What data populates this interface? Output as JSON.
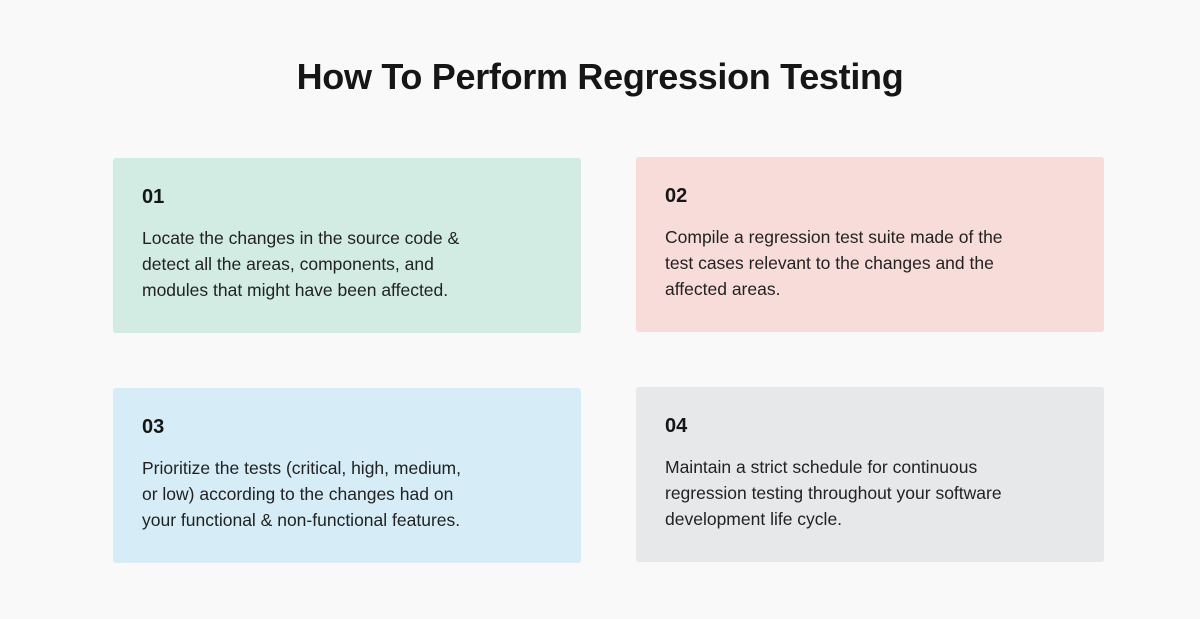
{
  "title": "How To Perform Regression Testing",
  "colors": {
    "background": "#f9f9f9",
    "step1": "#d3ece3",
    "step2": "#f8dcda",
    "step3": "#d6edf7",
    "step4": "#e6e8e9"
  },
  "steps": [
    {
      "number": "01",
      "lines": [
        "Locate the changes in the source code &",
        "detect all the areas, components, and",
        "modules that might have been affected."
      ]
    },
    {
      "number": "02",
      "lines": [
        "Compile a regression test suite made of the",
        "test cases relevant to the changes and the",
        "affected areas."
      ]
    },
    {
      "number": "03",
      "lines": [
        "Prioritize the tests (critical, high, medium,",
        "or low) according to the changes had on",
        "your functional & non-functional features."
      ]
    },
    {
      "number": "04",
      "lines": [
        "Maintain a strict schedule for continuous",
        "regression testing throughout your software",
        "development life cycle."
      ]
    }
  ]
}
